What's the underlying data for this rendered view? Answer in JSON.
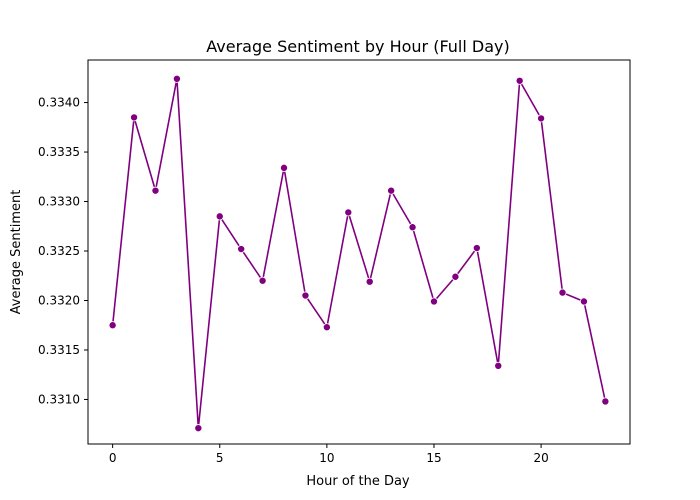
{
  "chart_data": {
    "type": "line",
    "title": "Average Sentiment by Hour (Full Day)",
    "xlabel": "Hour of the Day",
    "ylabel": "Average Sentiment",
    "x": [
      0,
      1,
      2,
      3,
      4,
      5,
      6,
      7,
      8,
      9,
      10,
      11,
      12,
      13,
      14,
      15,
      16,
      17,
      18,
      19,
      20,
      21,
      22,
      23
    ],
    "series": [
      {
        "values": [
          0.33175,
          0.33385,
          0.33311,
          0.33424,
          0.33071,
          0.33285,
          0.33252,
          0.3322,
          0.33334,
          0.33205,
          0.33173,
          0.33289,
          0.33219,
          0.33311,
          0.33274,
          0.33199,
          0.33224,
          0.33253,
          0.33134,
          0.33422,
          0.33384,
          0.33208,
          0.33199,
          0.33098
        ],
        "color": "#800080"
      }
    ],
    "xlim": [
      -1.15,
      24.15
    ],
    "ylim": [
      0.33055,
      0.33443
    ],
    "xticks": [
      "0",
      "5",
      "10",
      "15",
      "20"
    ],
    "xtick_values": [
      0,
      5,
      10,
      15,
      20
    ],
    "yticks": [
      "0.3310",
      "0.3315",
      "0.3320",
      "0.3325",
      "0.3330",
      "0.3335",
      "0.3340"
    ],
    "ytick_values": [
      0.331,
      0.3315,
      0.332,
      0.3325,
      0.333,
      0.3335,
      0.334
    ],
    "grid": false,
    "legend": "none",
    "marker": "circle"
  }
}
